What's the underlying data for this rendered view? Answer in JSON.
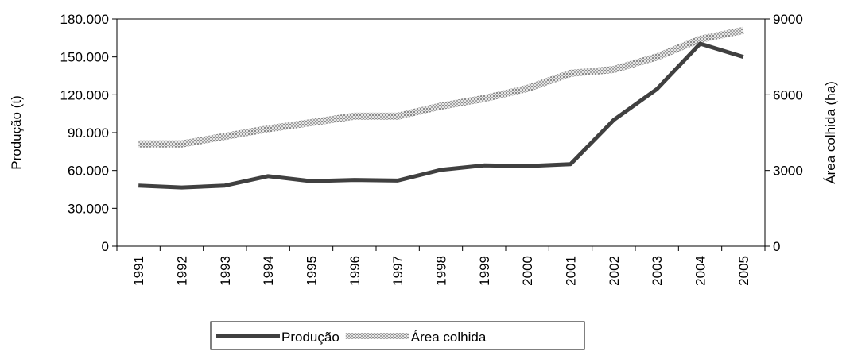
{
  "chart_data": {
    "type": "line",
    "y_label": "Produção (t)",
    "y2_label": "Área colhida (ha)",
    "categories": [
      "1991",
      "1992",
      "1993",
      "1994",
      "1995",
      "1996",
      "1997",
      "1998",
      "1999",
      "2000",
      "2001",
      "2002",
      "2003",
      "2004",
      "2005"
    ],
    "series": [
      {
        "name": "Produção",
        "color": "#404040",
        "values": [
          48000,
          46500,
          48000,
          55500,
          51500,
          52500,
          52000,
          60500,
          64000,
          63500,
          65000,
          100000,
          124500,
          160500,
          150000
        ]
      },
      {
        "name": "Área colhida",
        "color": "#b8b8b8",
        "axis": "y2",
        "values": [
          4050,
          4050,
          4350,
          4650,
          4900,
          5150,
          5150,
          5550,
          5850,
          6250,
          6850,
          7000,
          7500,
          8200,
          8550
        ]
      }
    ],
    "ylim": [
      0,
      180000
    ],
    "yticks": [
      0,
      {
        "value": 30000,
        "label": "30.000"
      },
      {
        "value": 60000,
        "label": "60.000"
      },
      {
        "value": 90000,
        "label": "90.000"
      },
      {
        "value": 120000,
        "label": "120.000"
      },
      {
        "value": 150000,
        "label": "150.000"
      },
      {
        "value": 180000,
        "label": "180.000"
      }
    ],
    "y2lim": [
      0,
      9000
    ],
    "y2ticks": [
      0,
      3000,
      6000,
      9000
    ],
    "legend": "bottom"
  }
}
